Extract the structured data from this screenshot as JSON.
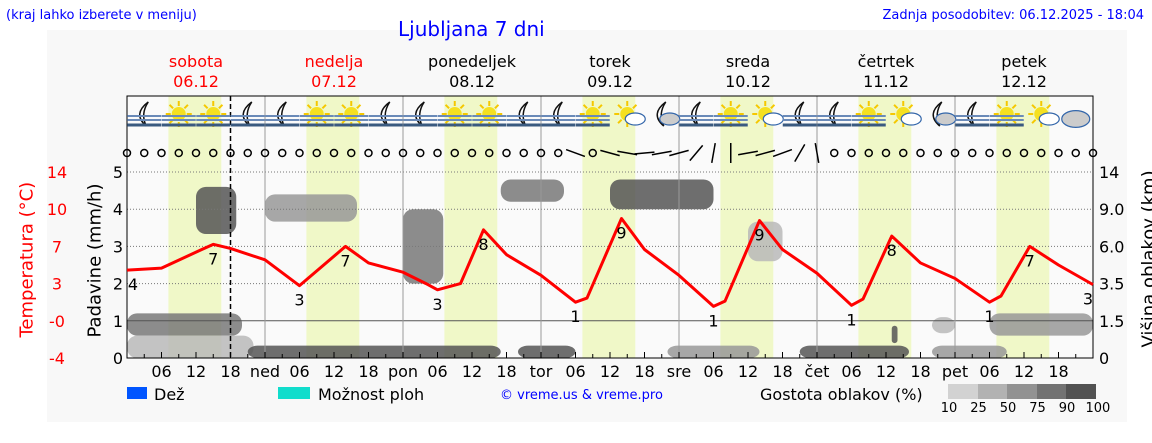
{
  "header": {
    "hint": "(kraj lahko izberete v meniju)",
    "title": "Ljubljana 7 dni",
    "updated": "Zadnja posodobitev: 06.12.2025 - 18:04"
  },
  "days": [
    {
      "name": "sobota",
      "date": "06.12",
      "weekend": true
    },
    {
      "name": "nedelja",
      "date": "07.12",
      "weekend": true
    },
    {
      "name": "ponedeljek",
      "date": "08.12",
      "weekend": false
    },
    {
      "name": "torek",
      "date": "09.12",
      "weekend": false
    },
    {
      "name": "sreda",
      "date": "10.12",
      "weekend": false
    },
    {
      "name": "četrtek",
      "date": "11.12",
      "weekend": false
    },
    {
      "name": "petek",
      "date": "12.12",
      "weekend": false
    }
  ],
  "colors": {
    "temperature": "#ff0000",
    "weekend": "#ff0000",
    "daylight": "#f0f8c8",
    "rain": "#0055ff",
    "showers": "#11ddcc",
    "title": "#0000ff"
  },
  "legend": {
    "rain": "Dež",
    "showers": "Možnost ploh",
    "copyright": "© vreme.us & vreme.pro",
    "cloud_title": "Gostota oblakov (%)",
    "cloud_levels": [
      "10",
      "25",
      "50",
      "75",
      "90",
      "100"
    ],
    "cloud_colors": [
      "#d2d2d2",
      "#b2b2b2",
      "#929292",
      "#727272",
      "#525252"
    ]
  },
  "chart_data": {
    "type": "line",
    "x_unit": "hours from Sat 06.12 00:00",
    "xlim": [
      0,
      168
    ],
    "x_tick_labels": [
      "",
      "06",
      "12",
      "18",
      "ned",
      "06",
      "12",
      "18",
      "pon",
      "06",
      "12",
      "18",
      "tor",
      "06",
      "12",
      "18",
      "sre",
      "06",
      "12",
      "18",
      "čet",
      "06",
      "12",
      "18",
      "pet",
      "06",
      "12",
      "18"
    ],
    "now_hour": 18,
    "left_axis": {
      "label": "Temperatura (°C)",
      "ticks": [
        "14",
        "10",
        "7",
        "3",
        "-0",
        "-4"
      ],
      "range": [
        -4,
        14
      ]
    },
    "precip_axis": {
      "label": "Padavine (mm/h)",
      "ticks": [
        "5",
        "4",
        "3",
        "2",
        "1",
        "0"
      ],
      "range": [
        0,
        5
      ]
    },
    "right_axis": {
      "label": "Višina oblakov (km)",
      "ticks": [
        "14",
        "9.0",
        "6.0",
        "3.5",
        "1.5",
        "0"
      ]
    },
    "daylight": [
      [
        7.2,
        16.4
      ],
      [
        31.2,
        40.4
      ],
      [
        55.2,
        64.4
      ],
      [
        79.2,
        88.4
      ],
      [
        103.2,
        112.4
      ],
      [
        127.2,
        136.4
      ],
      [
        151.2,
        160.4
      ]
    ],
    "temperature": [
      [
        0,
        4.5
      ],
      [
        6,
        4.7
      ],
      [
        13,
        6.5
      ],
      [
        15,
        7
      ],
      [
        18,
        6.6
      ],
      [
        24,
        5.5
      ],
      [
        30,
        3
      ],
      [
        38,
        6.8
      ],
      [
        42,
        5.2
      ],
      [
        48,
        4.3
      ],
      [
        52,
        3.2
      ],
      [
        54,
        2.6
      ],
      [
        58,
        3.2
      ],
      [
        62,
        8.4
      ],
      [
        66,
        6
      ],
      [
        72,
        4
      ],
      [
        78,
        1.4
      ],
      [
        80,
        1.8
      ],
      [
        86,
        9.5
      ],
      [
        90,
        6.5
      ],
      [
        96,
        4
      ],
      [
        102,
        1
      ],
      [
        104,
        1.5
      ],
      [
        110,
        9.3
      ],
      [
        114,
        6.5
      ],
      [
        120,
        4.2
      ],
      [
        126,
        1.1
      ],
      [
        128,
        1.7
      ],
      [
        133,
        7.8
      ],
      [
        138,
        5.2
      ],
      [
        144,
        3.7
      ],
      [
        150,
        1.4
      ],
      [
        152,
        2
      ],
      [
        157,
        6.8
      ],
      [
        162,
        5
      ],
      [
        168,
        3.1
      ]
    ],
    "temp_labels": [
      [
        0,
        "4"
      ],
      [
        15,
        "7"
      ],
      [
        30,
        "3"
      ],
      [
        38,
        "7"
      ],
      [
        54,
        "3"
      ],
      [
        62,
        "8"
      ],
      [
        78,
        "1"
      ],
      [
        86,
        "9"
      ],
      [
        102,
        "1"
      ],
      [
        110,
        "9"
      ],
      [
        126,
        "1"
      ],
      [
        133,
        "8"
      ],
      [
        150,
        "1"
      ],
      [
        157,
        "7"
      ],
      [
        168,
        "3"
      ]
    ],
    "precipitation": [],
    "clouds": [
      {
        "h": [
          0,
          20
        ],
        "km": [
          0.9,
          1.9
        ],
        "density": 75
      },
      {
        "h": [
          0,
          22
        ],
        "km": [
          0,
          0.9
        ],
        "density": 25
      },
      {
        "h": [
          21,
          65
        ],
        "km": [
          0,
          0.5
        ],
        "density": 90
      },
      {
        "h": [
          68,
          78
        ],
        "km": [
          0,
          0.5
        ],
        "density": 90
      },
      {
        "h": [
          94,
          110
        ],
        "km": [
          0,
          0.5
        ],
        "density": 50
      },
      {
        "h": [
          117,
          136
        ],
        "km": [
          0,
          0.5
        ],
        "density": 90
      },
      {
        "h": [
          140,
          153
        ],
        "km": [
          0,
          0.5
        ],
        "density": 50
      },
      {
        "h": [
          150,
          168
        ],
        "km": [
          0.9,
          1.9
        ],
        "density": 50
      },
      {
        "h": [
          12,
          19
        ],
        "km": [
          7,
          12
        ],
        "density": 90
      },
      {
        "h": [
          48,
          55
        ],
        "km": [
          3.5,
          9
        ],
        "density": 75
      },
      {
        "h": [
          65,
          76
        ],
        "km": [
          10,
          13
        ],
        "density": 75
      },
      {
        "h": [
          84,
          102
        ],
        "km": [
          9,
          13
        ],
        "density": 90
      },
      {
        "h": [
          108,
          114
        ],
        "km": [
          5,
          8
        ],
        "density": 25
      },
      {
        "h": [
          133,
          134
        ],
        "km": [
          0.6,
          1.3
        ],
        "density": 90
      },
      {
        "h": [
          140,
          144
        ],
        "km": [
          1,
          1.7
        ],
        "density": 25
      },
      {
        "h": [
          24,
          40
        ],
        "km": [
          8,
          11
        ],
        "density": 50
      }
    ],
    "weather_icons": [
      "moon-fog",
      "sun-fog",
      "sun-fog",
      "moon-fog",
      "moon-fog",
      "sun-fog",
      "sun-fog",
      "moon-fog",
      "moon-fog",
      "sun-fog",
      "sun-fog",
      "moon-fog",
      "moon-fog",
      "sun-fog",
      "sun-cloud",
      "moon-cloud",
      "moon-fog",
      "sun-fog",
      "sun-cloud",
      "moon-fog",
      "moon-fog",
      "sun-fog",
      "sun-cloud",
      "moon-cloud",
      "moon-fog",
      "sun-fog",
      "sun-cloud",
      "cloudy"
    ],
    "wind": {
      "step_hours": 3,
      "barb_indices": [
        26,
        28,
        29,
        30,
        31,
        32,
        33,
        34,
        35,
        36,
        37,
        38,
        39,
        40
      ],
      "barb_angles": [
        40,
        35,
        30,
        15,
        10,
        5,
        -30,
        -60,
        -70,
        10,
        5,
        0,
        -40,
        -80
      ]
    }
  }
}
